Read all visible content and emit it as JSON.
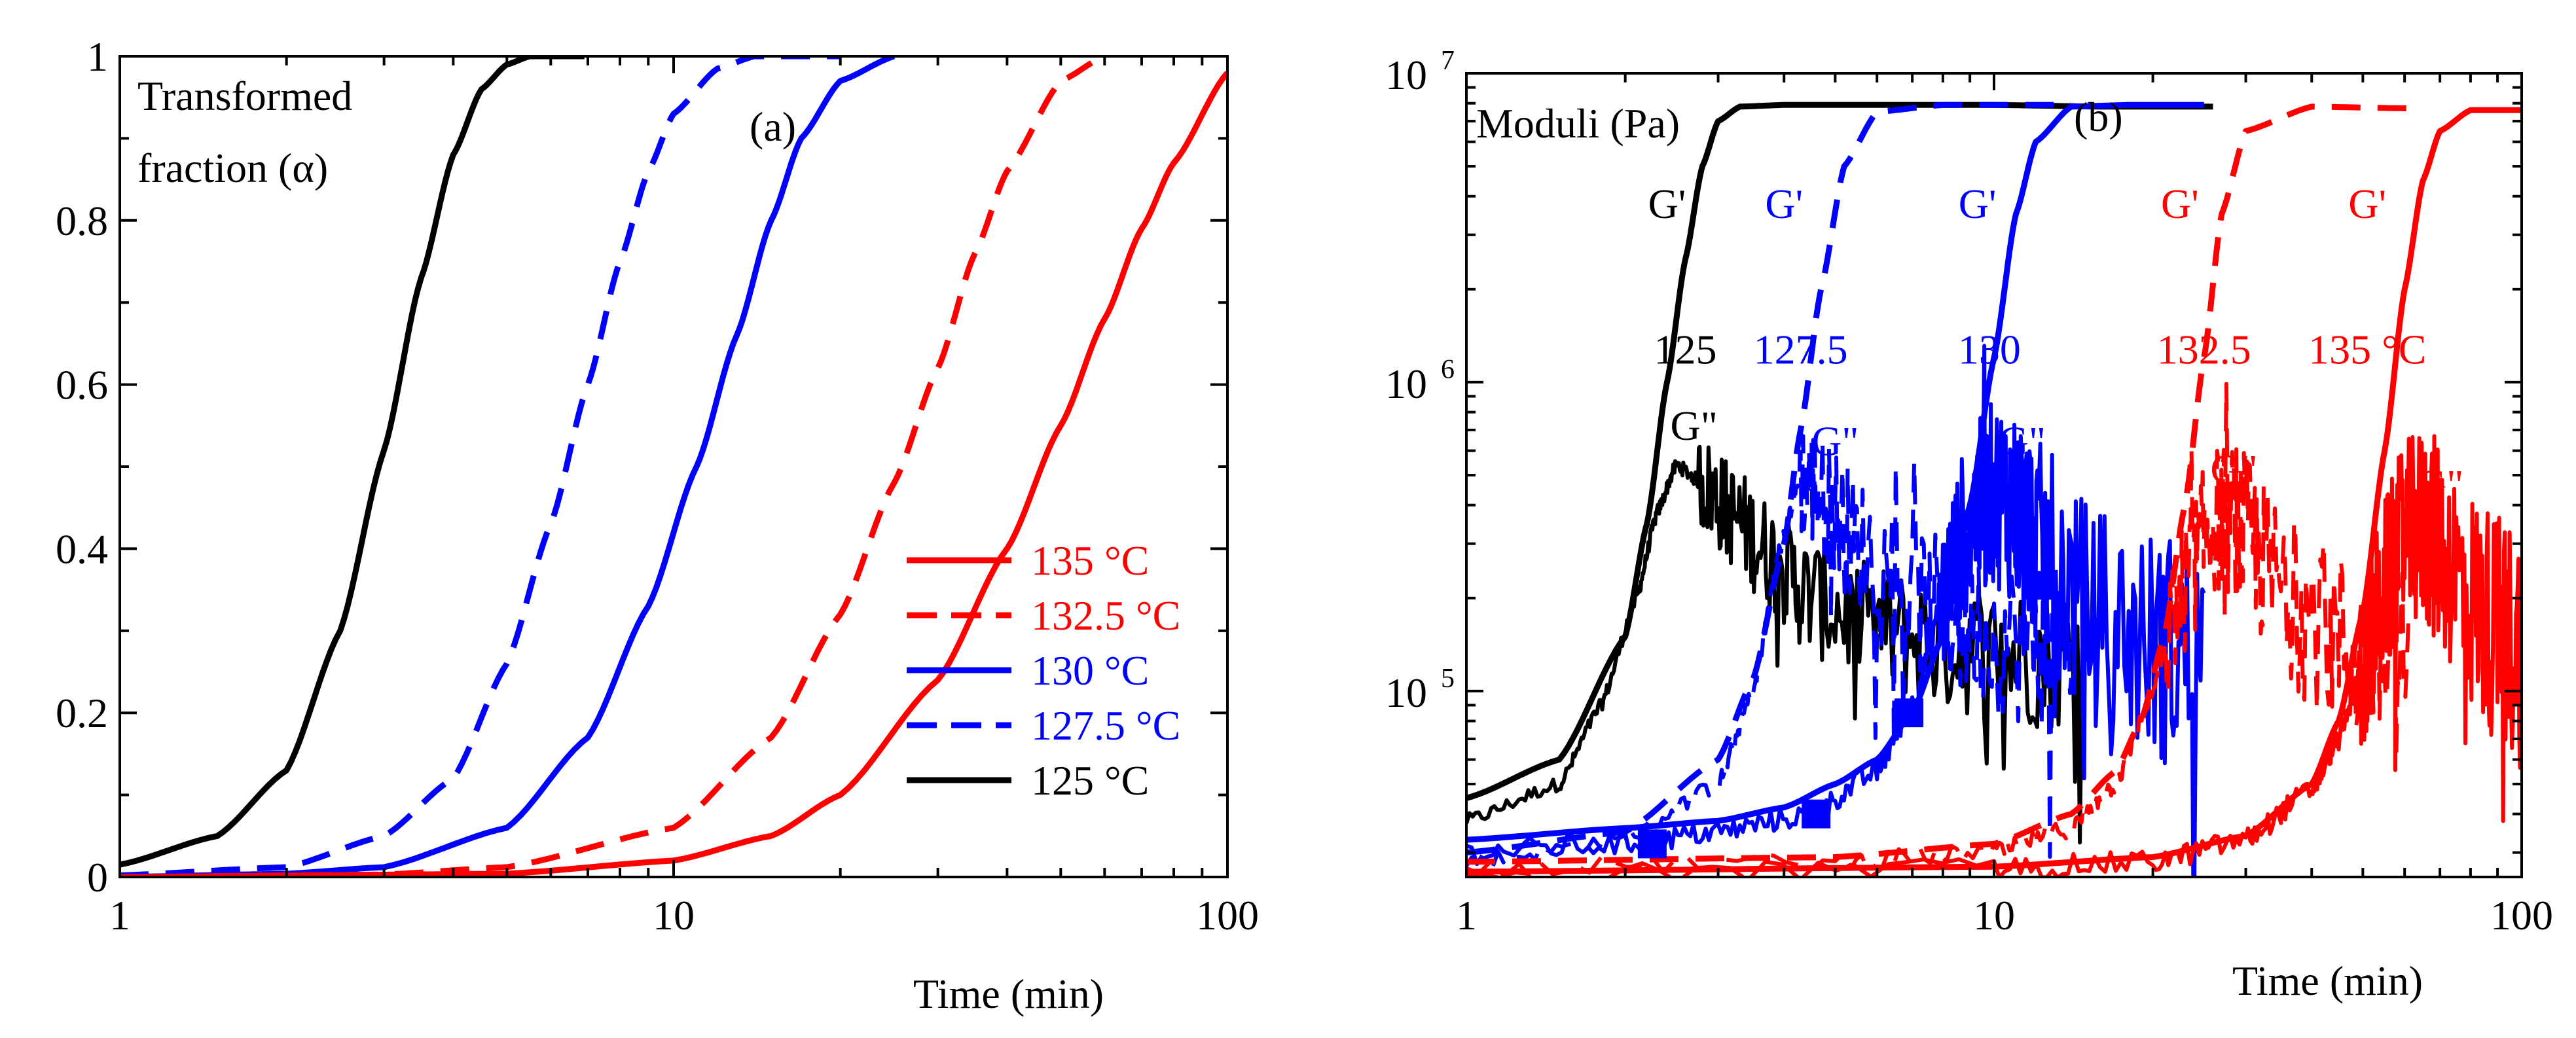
{
  "chart_data": [
    {
      "type": "line",
      "panel_label": "(a)",
      "xlabel": "Time (min)",
      "ylabel": "Transformed fraction (α)",
      "ylabel_lines": [
        "Transformed",
        "fraction (α)"
      ],
      "xscale": "log",
      "xlim": [
        1,
        100
      ],
      "ylim": [
        0,
        1
      ],
      "xticks": [
        1,
        10,
        100
      ],
      "xtick_labels": [
        "1",
        "10",
        "100"
      ],
      "yticks": [
        0,
        0.2,
        0.4,
        0.6,
        0.8,
        1
      ],
      "ytick_labels": [
        "0",
        "0.2",
        "0.4",
        "0.6",
        "0.8",
        "1"
      ],
      "legend": {
        "position": "lower-right",
        "entries": [
          {
            "label": "135 °C",
            "color": "#ff0000",
            "dash": "solid"
          },
          {
            "label": "132.5 °C",
            "color": "#ff0000",
            "dash": "dashed"
          },
          {
            "label": "130 °C",
            "color": "#0000ff",
            "dash": "solid"
          },
          {
            "label": "127.5 °C",
            "color": "#0000ff",
            "dash": "dashed"
          },
          {
            "label": "125 °C",
            "color": "#000000",
            "dash": "solid"
          }
        ]
      },
      "series": [
        {
          "name": "125 °C",
          "color": "#000000",
          "dash": "solid",
          "x": [
            1,
            1.5,
            2,
            2.5,
            3,
            3.5,
            4,
            4.5,
            5,
            5.5,
            6,
            6.9
          ],
          "y": [
            0.015,
            0.05,
            0.13,
            0.3,
            0.52,
            0.73,
            0.88,
            0.96,
            0.99,
            1.0,
            1.0,
            1.0
          ]
        },
        {
          "name": "127.5 °C",
          "color": "#0000ff",
          "dash": "dashed",
          "x": [
            1,
            2,
            3,
            4,
            5,
            6,
            7,
            8,
            9,
            10,
            12,
            14,
            16,
            20
          ],
          "y": [
            0.002,
            0.012,
            0.05,
            0.12,
            0.26,
            0.43,
            0.6,
            0.75,
            0.86,
            0.93,
            0.985,
            1.0,
            1.0,
            1.0
          ]
        },
        {
          "name": "130 °C",
          "color": "#0000ff",
          "dash": "solid",
          "x": [
            1,
            2,
            3,
            5,
            7,
            9,
            11,
            13,
            15,
            17,
            20,
            25
          ],
          "y": [
            0.0,
            0.004,
            0.012,
            0.06,
            0.17,
            0.33,
            0.5,
            0.66,
            0.8,
            0.9,
            0.97,
            1.0
          ]
        },
        {
          "name": "132.5 °C",
          "color": "#ff0000",
          "dash": "dashed",
          "x": [
            1,
            3,
            5,
            10,
            15,
            20,
            25,
            30,
            35,
            40,
            50,
            60
          ],
          "y": [
            0.0,
            0.003,
            0.012,
            0.06,
            0.17,
            0.32,
            0.48,
            0.62,
            0.76,
            0.86,
            0.97,
            1.0
          ]
        },
        {
          "name": "135 °C",
          "color": "#ff0000",
          "dash": "solid",
          "x": [
            1,
            5,
            10,
            15,
            20,
            30,
            40,
            50,
            60,
            70,
            80,
            100
          ],
          "y": [
            0.0,
            0.004,
            0.02,
            0.05,
            0.1,
            0.24,
            0.4,
            0.55,
            0.68,
            0.79,
            0.87,
            0.98
          ]
        }
      ]
    },
    {
      "type": "line",
      "panel_label": "(b)",
      "xlabel": "Time (min)",
      "ylabel": "Moduli (Pa)",
      "xscale": "log",
      "yscale": "log",
      "xlim": [
        1,
        100
      ],
      "ylim": [
        25000,
        10000000
      ],
      "xticks": [
        1,
        10,
        100
      ],
      "xtick_labels": [
        "1",
        "10",
        "100"
      ],
      "yticks": [
        100000,
        1000000,
        10000000
      ],
      "ytick_labels": [
        {
          "base": "10",
          "exp": "5"
        },
        {
          "base": "10",
          "exp": "6"
        },
        {
          "base": "10",
          "exp": "7"
        }
      ],
      "annotations": [
        {
          "text": "G'",
          "color": "#000000",
          "x": 2.4,
          "y": 3400000
        },
        {
          "text": "125",
          "color": "#000000",
          "x": 2.6,
          "y": 1150000
        },
        {
          "text": "G\"",
          "color": "#000000",
          "x": 2.7,
          "y": 650000
        },
        {
          "text": "G'",
          "color": "#0000ff",
          "x": 4.0,
          "y": 3400000
        },
        {
          "text": "127.5",
          "color": "#0000ff",
          "x": 4.3,
          "y": 1150000
        },
        {
          "text": "G\"",
          "color": "#0000ff",
          "x": 5.0,
          "y": 580000
        },
        {
          "text": "G'",
          "color": "#0000ff",
          "x": 9.3,
          "y": 3400000
        },
        {
          "text": "130",
          "color": "#0000ff",
          "x": 9.8,
          "y": 1150000
        },
        {
          "text": "G\"",
          "color": "#0000ff",
          "x": 11.3,
          "y": 580000
        },
        {
          "text": "G'",
          "color": "#ff0000",
          "x": 22.5,
          "y": 3400000
        },
        {
          "text": "132.5",
          "color": "#ff0000",
          "x": 25.0,
          "y": 1150000
        },
        {
          "text": "G\"",
          "color": "#ff0000",
          "x": 28.5,
          "y": 470000
        },
        {
          "text": "G'",
          "color": "#ff0000",
          "x": 51.0,
          "y": 3400000
        },
        {
          "text": "135 °C",
          "color": "#ff0000",
          "x": 51.0,
          "y": 1150000
        },
        {
          "text": "G\"",
          "color": "#ff0000",
          "x": 70.0,
          "y": 420000
        }
      ],
      "series": [
        {
          "name": "G' 125",
          "color": "#000000",
          "dash": "solid",
          "x": [
            1,
            1.5,
            2,
            2.2,
            2.4,
            2.6,
            2.8,
            3.0,
            3.3,
            4,
            6,
            10,
            16,
            26
          ],
          "y": [
            45000,
            60000,
            150000,
            350000,
            1000000,
            2500000,
            5000000,
            7000000,
            7800000,
            7900000,
            7900000,
            7900000,
            7800000,
            7800000
          ]
        },
        {
          "name": "G\" 125",
          "color": "#000000",
          "dash": "solid",
          "noise": 0.15,
          "x": [
            1,
            1.5,
            1.8,
            2.1,
            2.3,
            2.5,
            2.8,
            3.2,
            3.8,
            4.5,
            6,
            8,
            11,
            15
          ],
          "y": [
            38000,
            50000,
            90000,
            200000,
            380000,
            540000,
            470000,
            370000,
            270000,
            200000,
            160000,
            140000,
            130000,
            125000
          ]
        },
        {
          "name": "G' 127.5",
          "color": "#0000ff",
          "dash": "dashed",
          "x": [
            1,
            2,
            3,
            3.5,
            4,
            4.3,
            4.7,
            5.2,
            6,
            8,
            11,
            14
          ],
          "y": [
            30000,
            35000,
            60000,
            110000,
            300000,
            700000,
            2000000,
            5000000,
            7500000,
            7900000,
            7900000,
            7900000
          ]
        },
        {
          "name": "G\" 127.5",
          "color": "#0000ff",
          "dash": "dashed",
          "noise": 0.18,
          "x": [
            1,
            2,
            3,
            3.5,
            3.9,
            4.3,
            4.8,
            5.5,
            7,
            9,
            12,
            14
          ],
          "y": [
            28000,
            33000,
            50000,
            100000,
            280000,
            490000,
            420000,
            300000,
            200000,
            160000,
            140000,
            130000
          ]
        },
        {
          "name": "G' 130",
          "color": "#0000ff",
          "dash": "solid",
          "x": [
            1,
            2,
            3,
            4,
            5,
            6,
            7,
            8,
            9,
            10,
            11,
            12,
            14,
            18,
            25
          ],
          "y": [
            33000,
            36000,
            38000,
            42000,
            50000,
            60000,
            85000,
            150000,
            400000,
            1200000,
            3500000,
            6000000,
            7800000,
            7900000,
            7900000
          ]
        },
        {
          "name": "G\" 130",
          "color": "#0000ff",
          "dash": "solid",
          "noise": 0.25,
          "x": [
            1,
            2,
            3,
            4.5,
            6,
            7,
            8,
            9,
            10,
            11,
            12.5,
            15,
            20,
            25
          ],
          "y": [
            30000,
            32000,
            35000,
            40000,
            55000,
            90000,
            200000,
            360000,
            440000,
            400000,
            280000,
            180000,
            140000,
            130000
          ]
        },
        {
          "name": "G' 132.5",
          "color": "#ff0000",
          "dash": "dashed",
          "x": [
            1,
            5,
            10,
            14,
            17,
            19,
            21,
            23,
            25,
            27,
            30,
            40,
            61
          ],
          "y": [
            28000,
            29000,
            32000,
            40000,
            55000,
            80000,
            150000,
            400000,
            1200000,
            3500000,
            6500000,
            7800000,
            7700000
          ]
        },
        {
          "name": "G\" 132.5",
          "color": "#ff0000",
          "dash": "dashed",
          "noise": 0.2,
          "x": [
            1,
            5,
            10,
            14,
            17,
            20,
            23,
            26,
            29,
            33,
            40,
            50,
            61
          ],
          "y": [
            27000,
            28000,
            30000,
            36000,
            50000,
            100000,
            220000,
            360000,
            350000,
            250000,
            170000,
            130000,
            120000
          ]
        },
        {
          "name": "G' 135",
          "color": "#ff0000",
          "dash": "solid",
          "x": [
            1,
            10,
            20,
            30,
            40,
            45,
            50,
            55,
            60,
            65,
            70,
            80,
            100
          ],
          "y": [
            26000,
            27000,
            29000,
            34000,
            50000,
            80000,
            180000,
            600000,
            2000000,
            4500000,
            6500000,
            7600000,
            7600000
          ]
        },
        {
          "name": "G\" 135",
          "color": "#ff0000",
          "dash": "solid",
          "noise": 0.25,
          "x": [
            1,
            10,
            20,
            30,
            40,
            45,
            50,
            55,
            60,
            65,
            70,
            80,
            90,
            100
          ],
          "y": [
            25500,
            26500,
            28000,
            33000,
            48000,
            70000,
            120000,
            220000,
            320000,
            340000,
            300000,
            200000,
            160000,
            140000
          ]
        }
      ],
      "markers": [
        {
          "color": "#0000ff",
          "x": [
            2.25,
            4.6,
            6.9,
            9.5,
            12.2
          ],
          "y": [
            32000,
            40000,
            85000,
            360000,
            220000
          ]
        }
      ]
    }
  ]
}
